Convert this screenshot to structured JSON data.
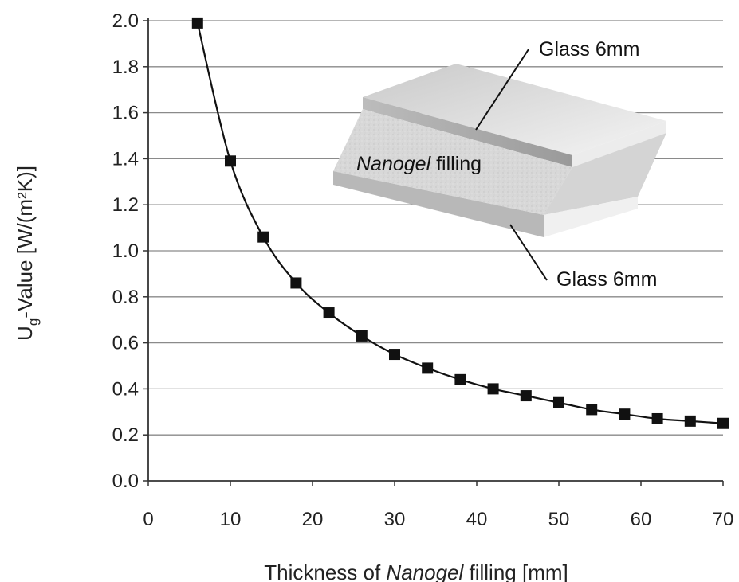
{
  "chart_data": {
    "type": "line",
    "xlabel": {
      "prefix": "Thickness of ",
      "italic": "Nanogel",
      "suffix": " filling [mm]"
    },
    "ylabel": {
      "main": "U",
      "sub": "g",
      "rest": "-Value [W/(m²K)]"
    },
    "xlim": [
      0,
      70
    ],
    "ylim": [
      0,
      2.0
    ],
    "xticks": [
      "0",
      "10",
      "20",
      "30",
      "40",
      "50",
      "60",
      "70"
    ],
    "yticks": [
      "0.0",
      "0.2",
      "0.4",
      "0.6",
      "0.8",
      "1.0",
      "1.2",
      "1.4",
      "1.6",
      "1.8",
      "2.0"
    ],
    "grid": "horizontal",
    "marker": "square",
    "line_color": "#111111",
    "series": [
      {
        "x": [
          6,
          10,
          14,
          18,
          22,
          26,
          30,
          34,
          38,
          42,
          46,
          50,
          54,
          58,
          62,
          66,
          70
        ],
        "y": [
          1.99,
          1.39,
          1.06,
          0.86,
          0.73,
          0.63,
          0.55,
          0.49,
          0.44,
          0.4,
          0.37,
          0.34,
          0.31,
          0.29,
          0.27,
          0.26,
          0.25
        ]
      }
    ]
  },
  "inset": {
    "label_top_glass": "Glass 6mm",
    "label_filling_italic": "Nanogel",
    "label_filling_rest": " filling",
    "label_bottom_glass": "Glass 6mm"
  }
}
